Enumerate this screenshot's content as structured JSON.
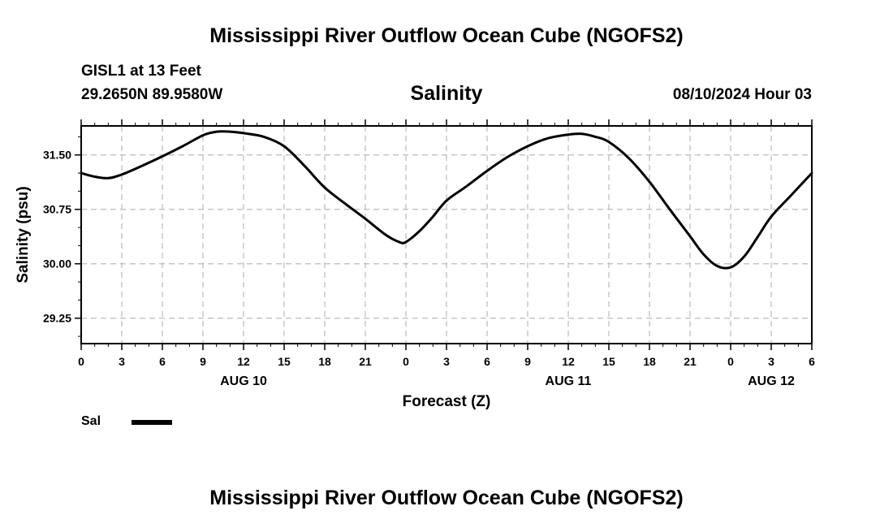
{
  "header": {
    "title": "Mississippi River Outflow Ocean Cube (NGOFS2)",
    "footer_title": "Mississippi River Outflow Ocean Cube (NGOFS2)",
    "station": "GISL1 at 13 Feet",
    "coords": "29.2650N  89.9580W",
    "date": "08/10/2024 Hour 03"
  },
  "colors": {
    "line": "#000000",
    "grid": "#bbbbbb",
    "axis": "#000000"
  },
  "chart_data": {
    "type": "line",
    "title": "Salinity",
    "xlabel": "Forecast (Z)",
    "ylabel": "Salinity (psu)",
    "xlim": [
      0,
      54
    ],
    "ylim": [
      28.9,
      31.9
    ],
    "grid": true,
    "x_ticks": [
      0,
      3,
      6,
      9,
      12,
      15,
      18,
      21,
      24,
      27,
      30,
      33,
      36,
      39,
      42,
      45,
      48,
      51,
      54
    ],
    "x_tick_labels": [
      "0",
      "3",
      "6",
      "9",
      "12",
      "15",
      "18",
      "21",
      "0",
      "3",
      "6",
      "9",
      "12",
      "15",
      "18",
      "21",
      "0",
      "3",
      "6"
    ],
    "y_ticks": [
      29.25,
      30.0,
      30.75,
      31.5
    ],
    "y_tick_labels": [
      "29.25",
      "30.00",
      "30.75",
      "31.50"
    ],
    "day_labels": [
      {
        "x": 12,
        "label": "AUG 10"
      },
      {
        "x": 36,
        "label": "AUG 11"
      },
      {
        "x": 51,
        "label": "AUG 12"
      }
    ],
    "legend": {
      "position": "bottom-left",
      "entries": [
        "Sal"
      ]
    },
    "series": [
      {
        "name": "Sal",
        "x": [
          0,
          1,
          2,
          3,
          4.5,
          6,
          7.5,
          9,
          10,
          11,
          12,
          13.5,
          15,
          16.5,
          18,
          19.5,
          21,
          22.5,
          23.5,
          24,
          25,
          26,
          27,
          28.5,
          30,
          31.5,
          33,
          34.5,
          36,
          37,
          38,
          39,
          40.5,
          42,
          43.5,
          45,
          46,
          47,
          48,
          49,
          50,
          51,
          52.5,
          54
        ],
        "y": [
          31.25,
          31.2,
          31.18,
          31.23,
          31.35,
          31.48,
          31.62,
          31.77,
          31.82,
          31.82,
          31.8,
          31.75,
          31.62,
          31.35,
          31.05,
          30.83,
          30.62,
          30.4,
          30.3,
          30.3,
          30.45,
          30.65,
          30.87,
          31.07,
          31.28,
          31.47,
          31.62,
          31.73,
          31.78,
          31.79,
          31.75,
          31.68,
          31.45,
          31.13,
          30.75,
          30.38,
          30.13,
          29.97,
          29.95,
          30.1,
          30.37,
          30.65,
          30.95,
          31.25
        ]
      }
    ]
  }
}
